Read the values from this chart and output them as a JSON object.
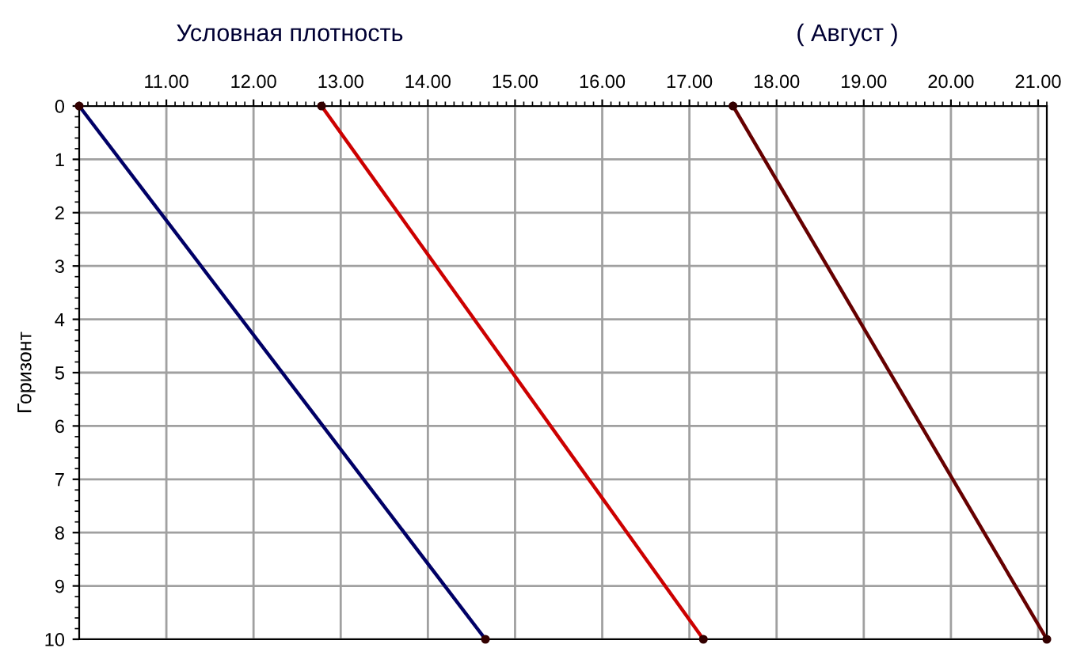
{
  "chart_data": {
    "type": "line",
    "title": "Условная плотность",
    "subtitle": "( Август )",
    "ylabel": "Горизонт",
    "series": [
      {
        "color": "#000066",
        "x": [
          10.0,
          14.66
        ],
        "values": [
          0,
          10
        ]
      },
      {
        "color": "#cc0000",
        "x": [
          12.78,
          17.16
        ],
        "values": [
          0,
          10
        ]
      },
      {
        "color": "#660000",
        "x": [
          17.5,
          21.1
        ],
        "values": [
          0,
          10
        ]
      }
    ],
    "xlim": [
      10.0,
      21.1
    ],
    "xticks": [
      {
        "value": 11,
        "label": "11.00"
      },
      {
        "value": 12,
        "label": "12.00"
      },
      {
        "value": 13,
        "label": "13.00"
      },
      {
        "value": 14,
        "label": "14.00"
      },
      {
        "value": 15,
        "label": "15.00"
      },
      {
        "value": 16,
        "label": "16.00"
      },
      {
        "value": 17,
        "label": "17.00"
      },
      {
        "value": 18,
        "label": "18.00"
      },
      {
        "value": 19,
        "label": "19.00"
      },
      {
        "value": 20,
        "label": "20.00"
      },
      {
        "value": 21,
        "label": "21.00"
      }
    ],
    "ylim": [
      10,
      0
    ],
    "yticks": [
      0,
      1,
      2,
      3,
      4,
      5,
      6,
      7,
      8,
      9,
      10
    ],
    "grid": true,
    "marker": "circle",
    "line_style": "solid",
    "legend": false
  }
}
